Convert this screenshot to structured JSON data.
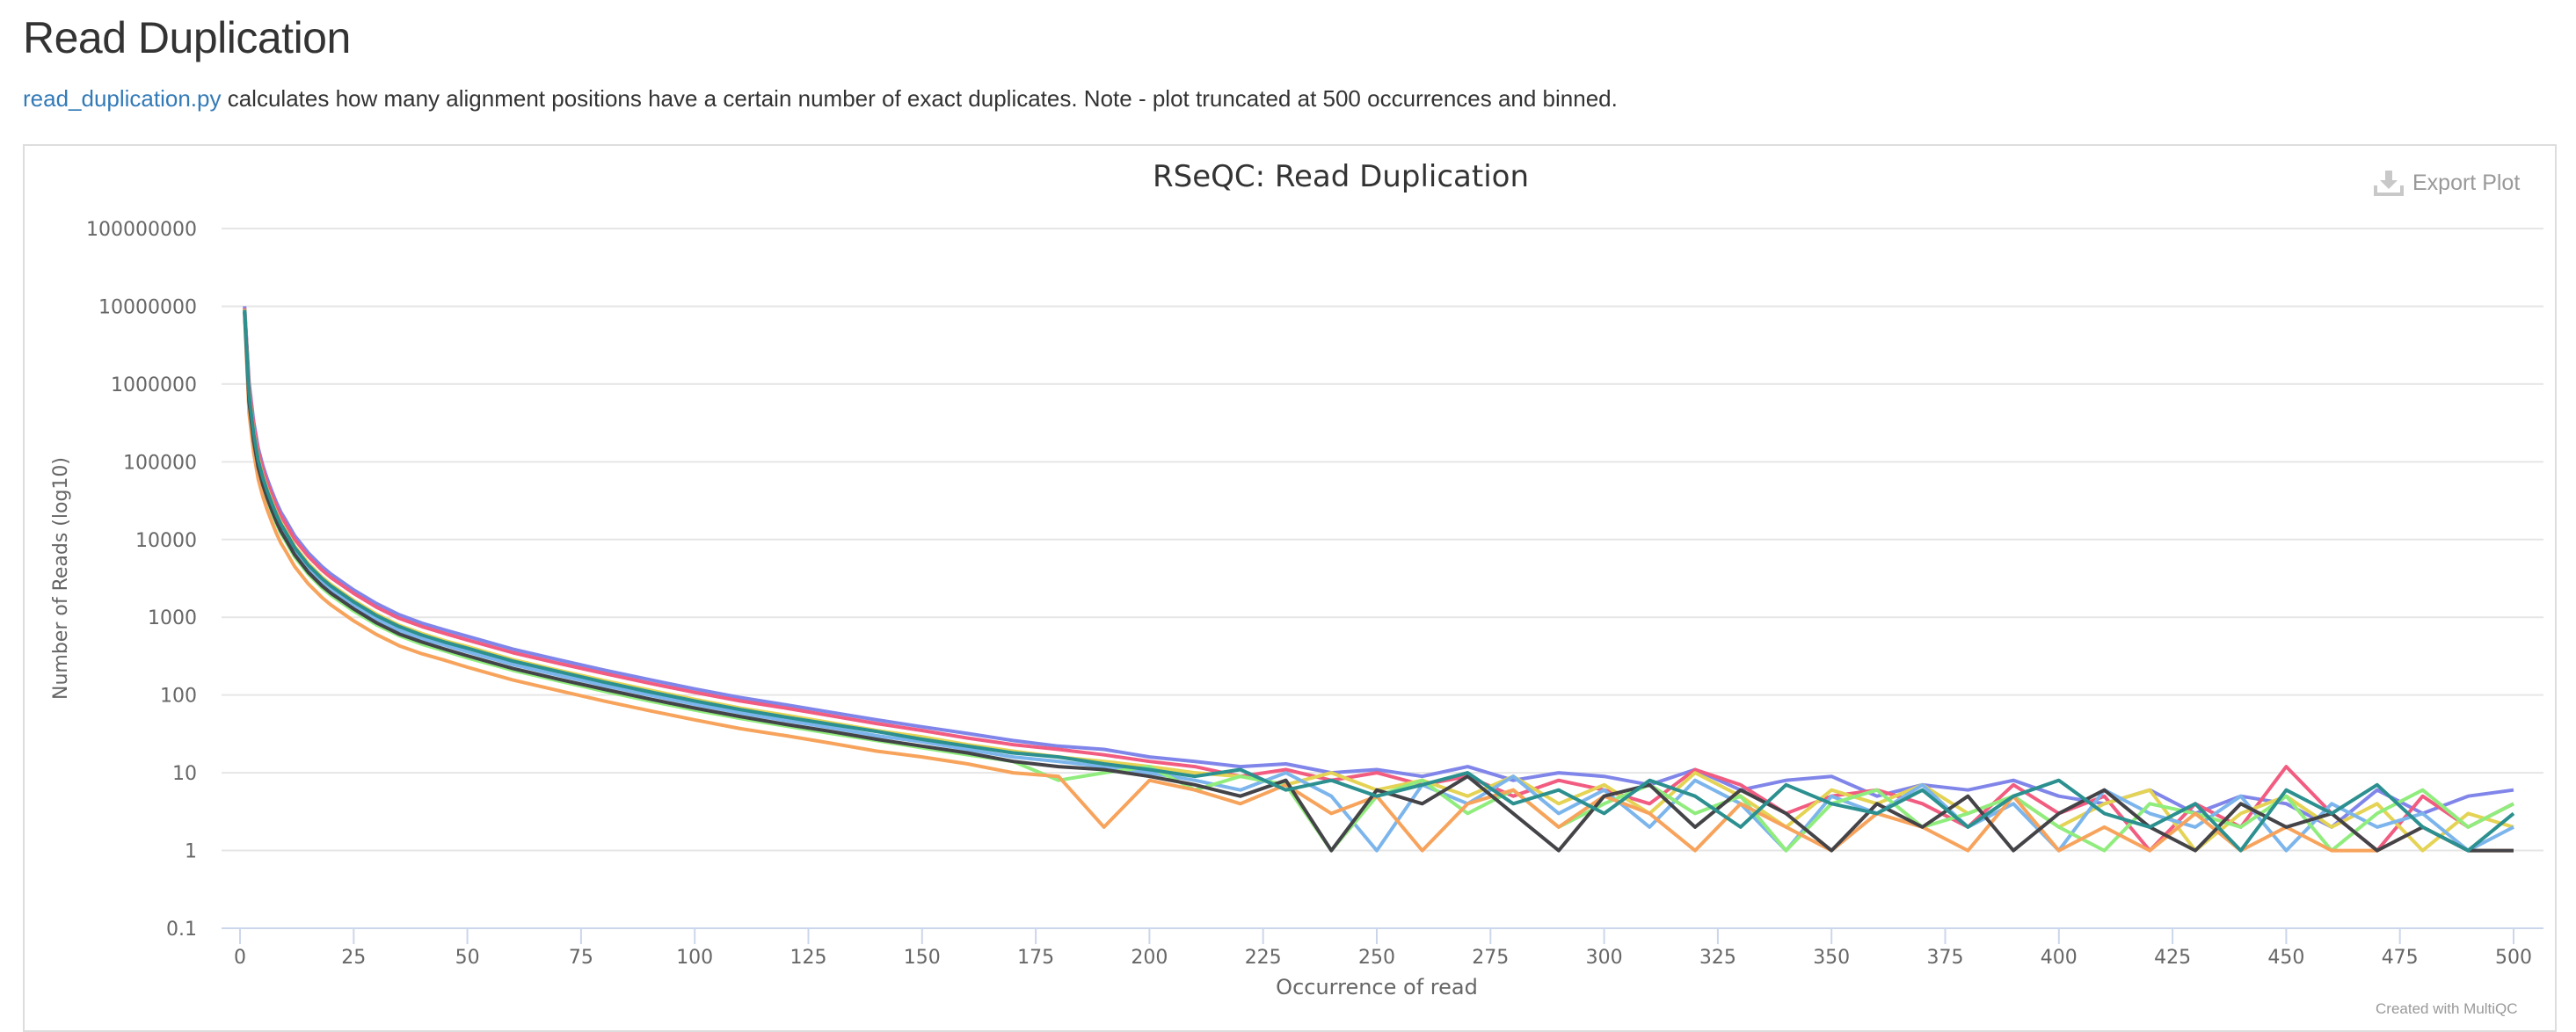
{
  "page": {
    "heading": "Read Duplication",
    "description_link": "read_duplication.py",
    "description_text": " calculates how many alignment positions have a certain number of exact duplicates. Note - plot truncated at 500 occurrences and binned.",
    "export_label": "Export Plot",
    "credit": "Created with MultiQC"
  },
  "chart_data": {
    "type": "line",
    "title": "RSeQC: Read Duplication",
    "xlabel": "Occurrence of read",
    "ylabel": "Number of Reads (log10)",
    "yscale": "log",
    "ylim": [
      0.1,
      100000000
    ],
    "xlim": [
      0,
      500
    ],
    "yticks": [
      "100000000",
      "10000000",
      "1000000",
      "100000",
      "10000",
      "1000",
      "100",
      "10",
      "1",
      "0.1"
    ],
    "xticks": [
      "0",
      "25",
      "50",
      "75",
      "100",
      "125",
      "150",
      "175",
      "200",
      "225",
      "250",
      "275",
      "300",
      "325",
      "350",
      "375",
      "400",
      "425",
      "450",
      "475",
      "500"
    ],
    "grid": true,
    "x": [
      1,
      2,
      3,
      4,
      5,
      6,
      7,
      8,
      9,
      10,
      12,
      15,
      18,
      20,
      25,
      30,
      35,
      40,
      45,
      50,
      60,
      70,
      80,
      90,
      100,
      110,
      120,
      130,
      140,
      150,
      160,
      170,
      180,
      190,
      200,
      210,
      220,
      230,
      240,
      250,
      260,
      270,
      280,
      290,
      300,
      310,
      320,
      330,
      340,
      350,
      360,
      370,
      380,
      390,
      400,
      410,
      420,
      430,
      440,
      450,
      460,
      470,
      480,
      490,
      500
    ],
    "series": [
      {
        "color": "#8085e9",
        "values": [
          10000000,
          1050000,
          330000,
          150000,
          90000,
          60000,
          42000,
          30000,
          22500,
          18000,
          11200,
          6750,
          4500,
          3600,
          2250,
          1500,
          1080,
          840,
          690,
          570,
          390,
          285,
          210,
          158,
          120,
          93,
          75,
          60,
          48,
          39,
          32,
          26,
          22,
          20,
          16,
          14,
          12,
          13,
          10,
          11,
          9,
          12,
          8,
          10,
          9,
          7,
          11,
          6,
          8,
          9,
          5,
          7,
          6,
          8,
          5,
          4,
          6,
          3,
          5,
          4,
          2,
          6,
          3,
          5,
          6
        ]
      },
      {
        "color": "#f15c80",
        "values": [
          9500000,
          945000,
          297000,
          135000,
          81000,
          54000,
          37800,
          27000,
          20250,
          16200,
          10100,
          6080,
          4050,
          3240,
          2030,
          1350,
          970,
          760,
          620,
          510,
          350,
          256,
          190,
          142,
          108,
          84,
          68,
          54,
          43,
          35,
          28,
          23,
          20,
          17,
          14,
          12,
          9,
          11,
          8,
          10,
          7,
          9,
          5,
          8,
          6,
          4,
          11,
          7,
          3,
          5,
          6,
          4,
          2,
          7,
          3,
          5,
          1,
          4,
          2,
          12,
          3,
          1,
          5,
          2,
          4
        ]
      },
      {
        "color": "#e4d354",
        "values": [
          9200000,
          770000,
          242000,
          110000,
          66000,
          44000,
          30800,
          22000,
          16500,
          13200,
          8250,
          4950,
          3300,
          2640,
          1650,
          1100,
          790,
          620,
          500,
          420,
          286,
          209,
          154,
          116,
          88,
          68,
          55,
          44,
          35,
          29,
          23,
          19,
          16,
          14,
          12,
          10,
          9,
          7,
          10,
          6,
          8,
          5,
          9,
          4,
          7,
          3,
          10,
          5,
          2,
          6,
          4,
          7,
          3,
          5,
          2,
          4,
          6,
          1,
          3,
          5,
          2,
          4,
          1,
          3,
          2
        ]
      },
      {
        "color": "#7cb5ec",
        "values": [
          8700000,
          665000,
          209000,
          95000,
          57000,
          38000,
          26600,
          19000,
          14250,
          11400,
          7100,
          4300,
          2850,
          2280,
          1430,
          950,
          680,
          530,
          440,
          360,
          247,
          180,
          133,
          100,
          76,
          59,
          47,
          38,
          30,
          25,
          20,
          16,
          14,
          12,
          10,
          8,
          6,
          10,
          5,
          1,
          7,
          4,
          9,
          3,
          6,
          2,
          8,
          4,
          1,
          5,
          3,
          7,
          2,
          4,
          1,
          6,
          3,
          2,
          5,
          1,
          4,
          2,
          3,
          1,
          2
        ]
      },
      {
        "color": "#90ed7d",
        "values": [
          8400000,
          560000,
          176000,
          80000,
          48000,
          32000,
          22400,
          16000,
          12000,
          9600,
          6000,
          3600,
          2400,
          1920,
          1200,
          800,
          580,
          450,
          370,
          300,
          208,
          152,
          112,
          84,
          64,
          50,
          40,
          32,
          26,
          21,
          17,
          14,
          8,
          10,
          12,
          6,
          9,
          7,
          1,
          5,
          8,
          3,
          6,
          2,
          4,
          7,
          3,
          5,
          1,
          4,
          6,
          2,
          3,
          5,
          2,
          1,
          4,
          3,
          2,
          5,
          1,
          3,
          6,
          2,
          4
        ]
      },
      {
        "color": "#f7a35c",
        "values": [
          8000000,
          420000,
          132000,
          60000,
          36000,
          24000,
          16800,
          12000,
          9000,
          7200,
          4500,
          2700,
          1800,
          1440,
          900,
          600,
          430,
          340,
          280,
          228,
          156,
          114,
          84,
          63,
          48,
          37,
          30,
          24,
          19,
          16,
          13,
          10,
          9,
          2,
          8,
          6,
          4,
          7,
          3,
          5,
          1,
          4,
          6,
          2,
          5,
          3,
          1,
          4,
          2,
          1,
          3,
          2,
          1,
          5,
          1,
          2,
          1,
          3,
          1,
          2,
          1,
          1,
          2,
          1,
          1
        ]
      },
      {
        "color": "#434348",
        "values": [
          8500000,
          595000,
          187000,
          85000,
          51000,
          34000,
          23800,
          17000,
          12750,
          10200,
          6400,
          3800,
          2550,
          2040,
          1280,
          850,
          610,
          480,
          390,
          320,
          220,
          160,
          119,
          89,
          68,
          53,
          42,
          34,
          27,
          22,
          18,
          14,
          12,
          11,
          9,
          7,
          5,
          8,
          1,
          6,
          4,
          9,
          3,
          1,
          5,
          7,
          2,
          6,
          3,
          1,
          4,
          2,
          5,
          1,
          3,
          6,
          2,
          1,
          4,
          2,
          3,
          1,
          2,
          1,
          1
        ]
      },
      {
        "color": "#2b908f",
        "values": [
          9000000,
          735000,
          231000,
          105000,
          63000,
          42000,
          29400,
          21000,
          15750,
          12600,
          7900,
          4700,
          3150,
          2520,
          1580,
          1050,
          760,
          590,
          480,
          400,
          273,
          200,
          147,
          110,
          84,
          65,
          52,
          42,
          34,
          27,
          22,
          18,
          16,
          13,
          11,
          9,
          11,
          6,
          8,
          5,
          7,
          10,
          4,
          6,
          3,
          8,
          5,
          2,
          7,
          4,
          3,
          6,
          2,
          5,
          8,
          3,
          2,
          4,
          1,
          6,
          3,
          7,
          2,
          1,
          3
        ]
      }
    ]
  }
}
